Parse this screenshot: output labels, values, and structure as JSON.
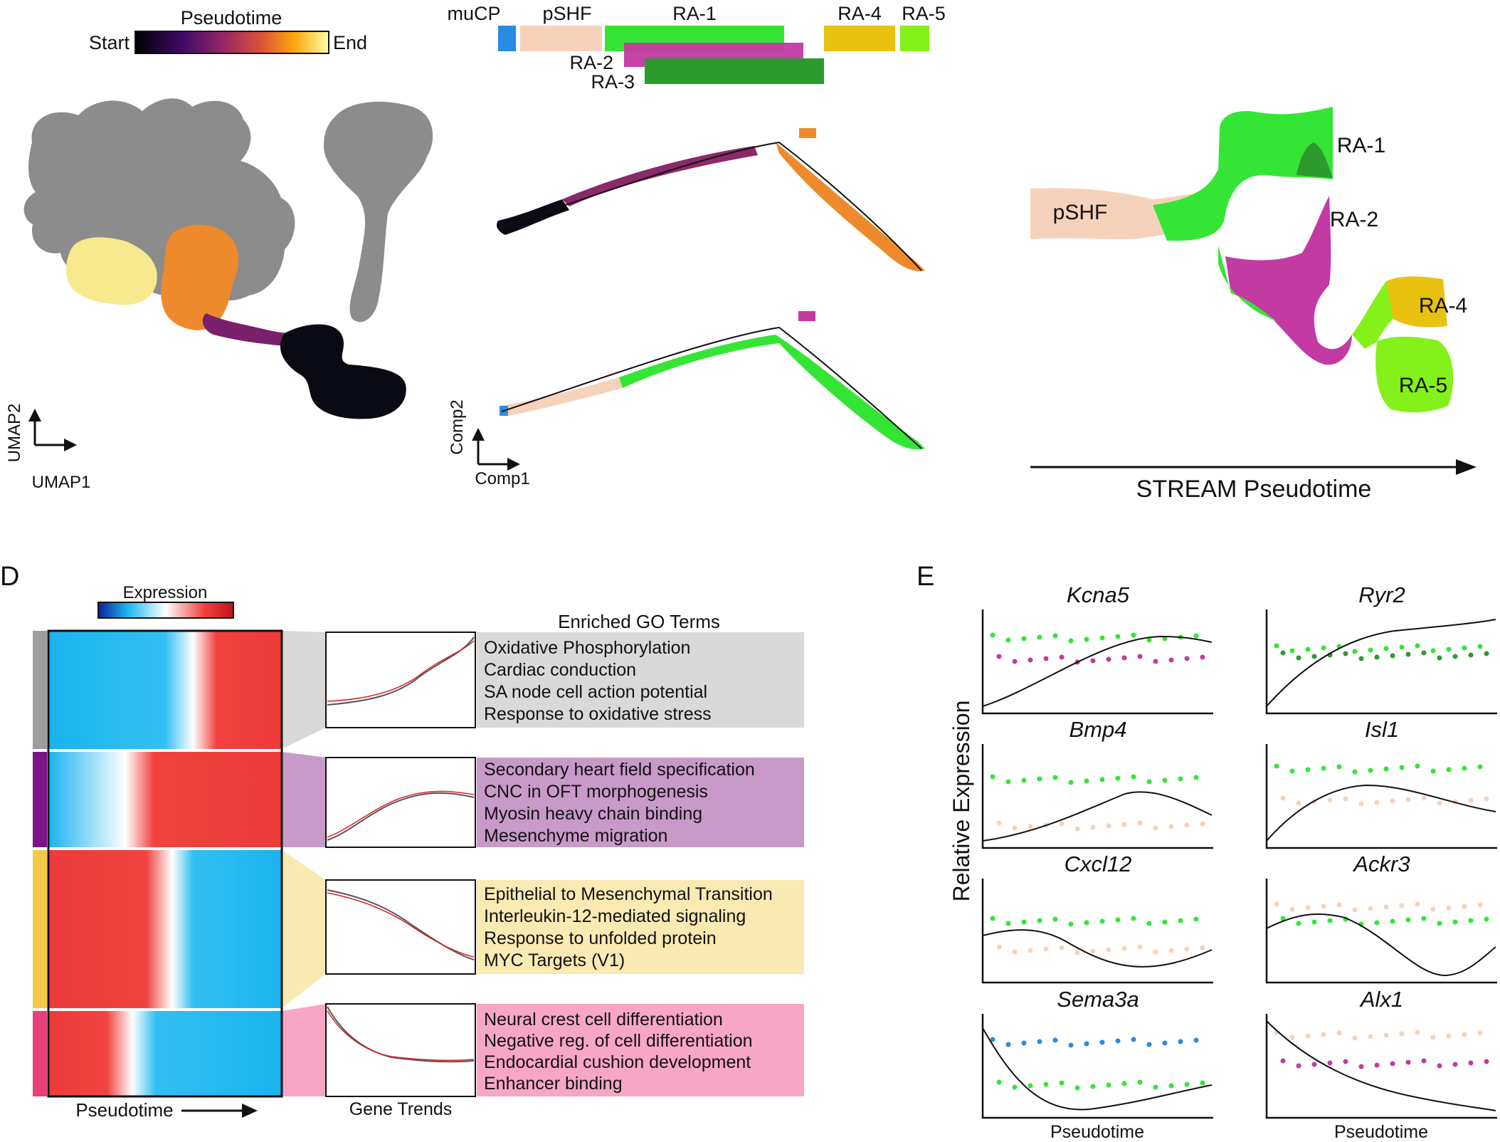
{
  "pseudotime_legend": {
    "title": "Pseudotime",
    "start": "Start",
    "end": "End"
  },
  "lineage_bar": {
    "labels": [
      "muCP",
      "pSHF",
      "RA-1",
      "RA-2",
      "RA-3",
      "RA-4",
      "RA-5"
    ],
    "colors": {
      "muCP": "#2b8be3",
      "pSHF": "#f6d2bb",
      "RA-1": "#35e535",
      "RA-2": "#c33aa3",
      "RA-3": "#2d9a2d",
      "RA-4": "#e8c20f",
      "RA-5": "#84f11a"
    }
  },
  "umap": {
    "x_label": "UMAP1",
    "y_label": "UMAP2"
  },
  "trajectory": {
    "x_label": "Comp1",
    "y_label": "Comp2"
  },
  "stream": {
    "axis_label": "STREAM Pseudotime",
    "branches": [
      "pSHF",
      "RA-1",
      "RA-2",
      "RA-4",
      "RA-5"
    ]
  },
  "panel_d": {
    "letter": "D",
    "expression_label": "Expression",
    "go_title": "Enriched GO Terms",
    "x_label": "Pseudotime",
    "trends_label": "Gene Trends",
    "clusters": [
      {
        "color": "#9e9e9e",
        "box": "#d9d9d9",
        "terms": [
          "Oxidative Phosphorylation",
          "Cardiac conduction",
          "SA node cell action potential",
          "Response to oxidative stress"
        ]
      },
      {
        "color": "#7b1487",
        "box": "#c89ac8",
        "terms": [
          "Secondary heart field specification",
          "CNC in OFT morphogenesis",
          "Myosin heavy chain binding",
          "Mesenchyme migration"
        ]
      },
      {
        "color": "#f4c84a",
        "box": "#f9eab3",
        "terms": [
          "Epithelial to Mesenchymal Transition",
          "Interleukin-12-mediated signaling",
          "Response to unfolded protein",
          "MYC Targets (V1)"
        ]
      },
      {
        "color": "#e83f7a",
        "box": "#f8a6c6",
        "terms": [
          "Neural crest cell differentiation",
          "Negative reg. of cell differentiation",
          "Endocardial cushion development",
          "Enhancer binding"
        ]
      }
    ]
  },
  "panel_e": {
    "letter": "E",
    "y_label": "Relative Expression",
    "x_label": "Pseudotime",
    "genes": [
      "Kcna5",
      "Ryr2",
      "Bmp4",
      "Isl1",
      "Cxcl12",
      "Ackr3",
      "Sema3a",
      "Alx1"
    ]
  }
}
